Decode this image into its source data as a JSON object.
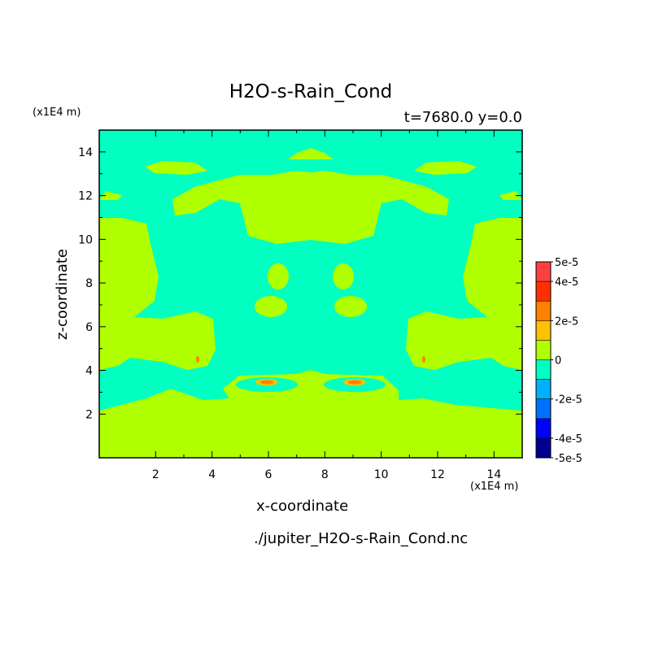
{
  "chart_data": {
    "type": "contour",
    "title": "H2O-s-Rain_Cond",
    "subtitle": "t=7680.0 y=0.0",
    "x_label": "x-coordinate",
    "y_label": "z-coordinate",
    "x_unit": "(x1E4 m)",
    "y_unit": "(x1E4 m)",
    "source": "./jupiter_H2O-s-Rain_Cond.nc",
    "xlim": [
      0,
      15
    ],
    "ylim": [
      0,
      15
    ],
    "xticks": [
      2,
      4,
      6,
      8,
      10,
      12,
      14
    ],
    "yticks": [
      2,
      4,
      6,
      8,
      10,
      12,
      14
    ],
    "colorbar": {
      "levels": [
        -5e-05,
        -4e-05,
        -3e-05,
        -2e-05,
        -1e-05,
        0,
        1e-05,
        2e-05,
        3e-05,
        4e-05,
        5e-05
      ],
      "colors": [
        "#000090",
        "#0000ff",
        "#0070ff",
        "#00b0ff",
        "#00ffc0",
        "#b0ff00",
        "#ffc000",
        "#ff8000",
        "#ff3000",
        "#ff4040"
      ],
      "ticks": [
        {
          "value": 5e-05,
          "label": "5e-5"
        },
        {
          "value": 4e-05,
          "label": "4e-5"
        },
        {
          "value": 2e-05,
          "label": "2e-5"
        },
        {
          "value": 0,
          "label": "0"
        },
        {
          "value": -2e-05,
          "label": "-2e-5"
        },
        {
          "value": -4e-05,
          "label": "-4e-5"
        },
        {
          "value": -5e-05,
          "label": "-5e-5"
        }
      ]
    }
  }
}
